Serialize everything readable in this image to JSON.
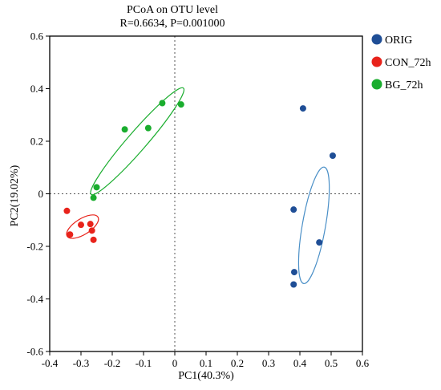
{
  "chart_data": {
    "type": "scatter",
    "title": "PCoA on OTU level",
    "subtitle": "R=0.6634, P=0.001000",
    "xlabel": "PC1(40.3%)",
    "ylabel": "PC2(19.02%)",
    "xlim": [
      -0.4,
      0.6
    ],
    "ylim": [
      -0.6,
      0.6
    ],
    "xticks": [
      "-0.4",
      "-0.3",
      "-0.2",
      "-0.1",
      "0",
      "0.1",
      "0.2",
      "0.3",
      "0.4",
      "0.5",
      "0.6"
    ],
    "yticks": [
      "-0.6",
      "-0.4",
      "-0.2",
      "0",
      "0.2",
      "0.4",
      "0.6"
    ],
    "grid": false,
    "reference_lines": {
      "x": 0,
      "y": 0,
      "style": "dotted"
    },
    "legend_position": "right",
    "series": [
      {
        "name": "ORIG",
        "color": "#1f4e96",
        "points": [
          [
            0.41,
            0.325
          ],
          [
            0.505,
            0.145
          ],
          [
            0.38,
            -0.06
          ],
          [
            0.462,
            -0.185
          ],
          [
            0.382,
            -0.298
          ],
          [
            0.38,
            -0.345
          ]
        ],
        "ellipse": {
          "cx": 0.445,
          "cy": -0.12,
          "rx": 0.037,
          "ry": 0.225,
          "angle": 10
        }
      },
      {
        "name": "CON_72h",
        "color": "#e8231b",
        "points": [
          [
            -0.345,
            -0.065
          ],
          [
            -0.3,
            -0.118
          ],
          [
            -0.27,
            -0.115
          ],
          [
            -0.265,
            -0.14
          ],
          [
            -0.26,
            -0.175
          ],
          [
            -0.335,
            -0.155
          ]
        ],
        "ellipse": {
          "cx": -0.295,
          "cy": -0.125,
          "rx": 0.058,
          "ry": 0.03,
          "angle": -32
        }
      },
      {
        "name": "BG_72h",
        "color": "#1aad2e",
        "points": [
          [
            -0.26,
            -0.015
          ],
          [
            -0.25,
            0.025
          ],
          [
            -0.16,
            0.245
          ],
          [
            -0.085,
            0.25
          ],
          [
            -0.04,
            0.345
          ],
          [
            0.02,
            0.34
          ]
        ],
        "ellipse": {
          "cx": -0.12,
          "cy": 0.2,
          "rx": 0.225,
          "ry": 0.036,
          "angle": -49
        }
      }
    ]
  }
}
